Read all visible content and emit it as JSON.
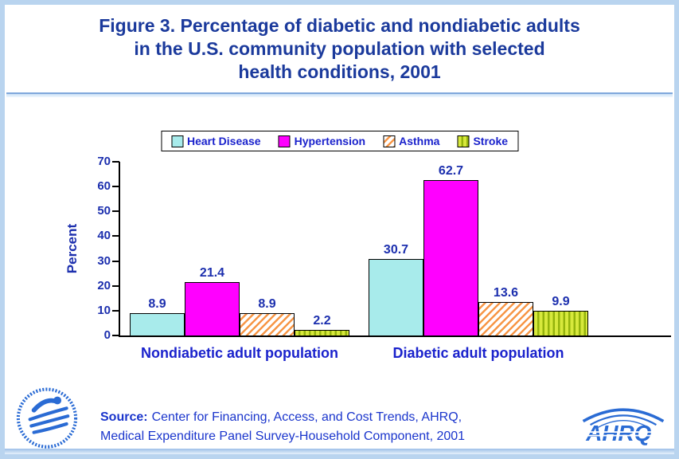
{
  "title": {
    "line1": "Figure 3. Percentage of diabetic and nondiabetic adults",
    "line2": "in the U.S. community population with selected",
    "line3": "health conditions, 2001"
  },
  "chart_data": {
    "type": "bar",
    "title": "Figure 3. Percentage of diabetic and nondiabetic adults in the U.S. community population with selected health conditions, 2001",
    "xlabel": "",
    "ylabel": "Percent",
    "ylim": [
      0,
      70
    ],
    "yticks": [
      0,
      10,
      20,
      30,
      40,
      50,
      60,
      70
    ],
    "grid": false,
    "legend_position": "top",
    "categories": [
      "Nondiabetic adult population",
      "Diabetic adult population"
    ],
    "series": [
      {
        "name": "Heart Disease",
        "values": [
          8.9,
          30.7
        ],
        "fill": {
          "type": "solid",
          "color": "#a8ebeb"
        }
      },
      {
        "name": "Hypertension",
        "values": [
          21.4,
          62.7
        ],
        "fill": {
          "type": "solid",
          "color": "#ff00ff"
        }
      },
      {
        "name": "Asthma",
        "values": [
          8.9,
          13.6
        ],
        "fill": {
          "type": "diagonal-stripes",
          "bg": "#ffffff",
          "stripe": "#f79646"
        }
      },
      {
        "name": "Stroke",
        "values": [
          2.2,
          9.9
        ],
        "fill": {
          "type": "vertical-stripes",
          "bg": "#d7e93c",
          "stripe": "#94b30c"
        }
      }
    ]
  },
  "source": {
    "label": "Source:",
    "rest1": "Center for Financing, Access, and Cost Trends, AHRQ,",
    "line2": "Medical Expenditure Panel Survey-Household Component, 2001"
  },
  "logos": {
    "ahrq_text": "AHRQ",
    "hhs_icon": "hhs-eagle-seal"
  },
  "colors": {
    "title_text": "#1b3a9c",
    "chart_text": "#1c2fae",
    "category_text": "#1a22cc",
    "source_text": "#1a35cc",
    "border": "#b9d4ef",
    "logo_blue": "#2a6bd4",
    "axis": "#000000"
  }
}
